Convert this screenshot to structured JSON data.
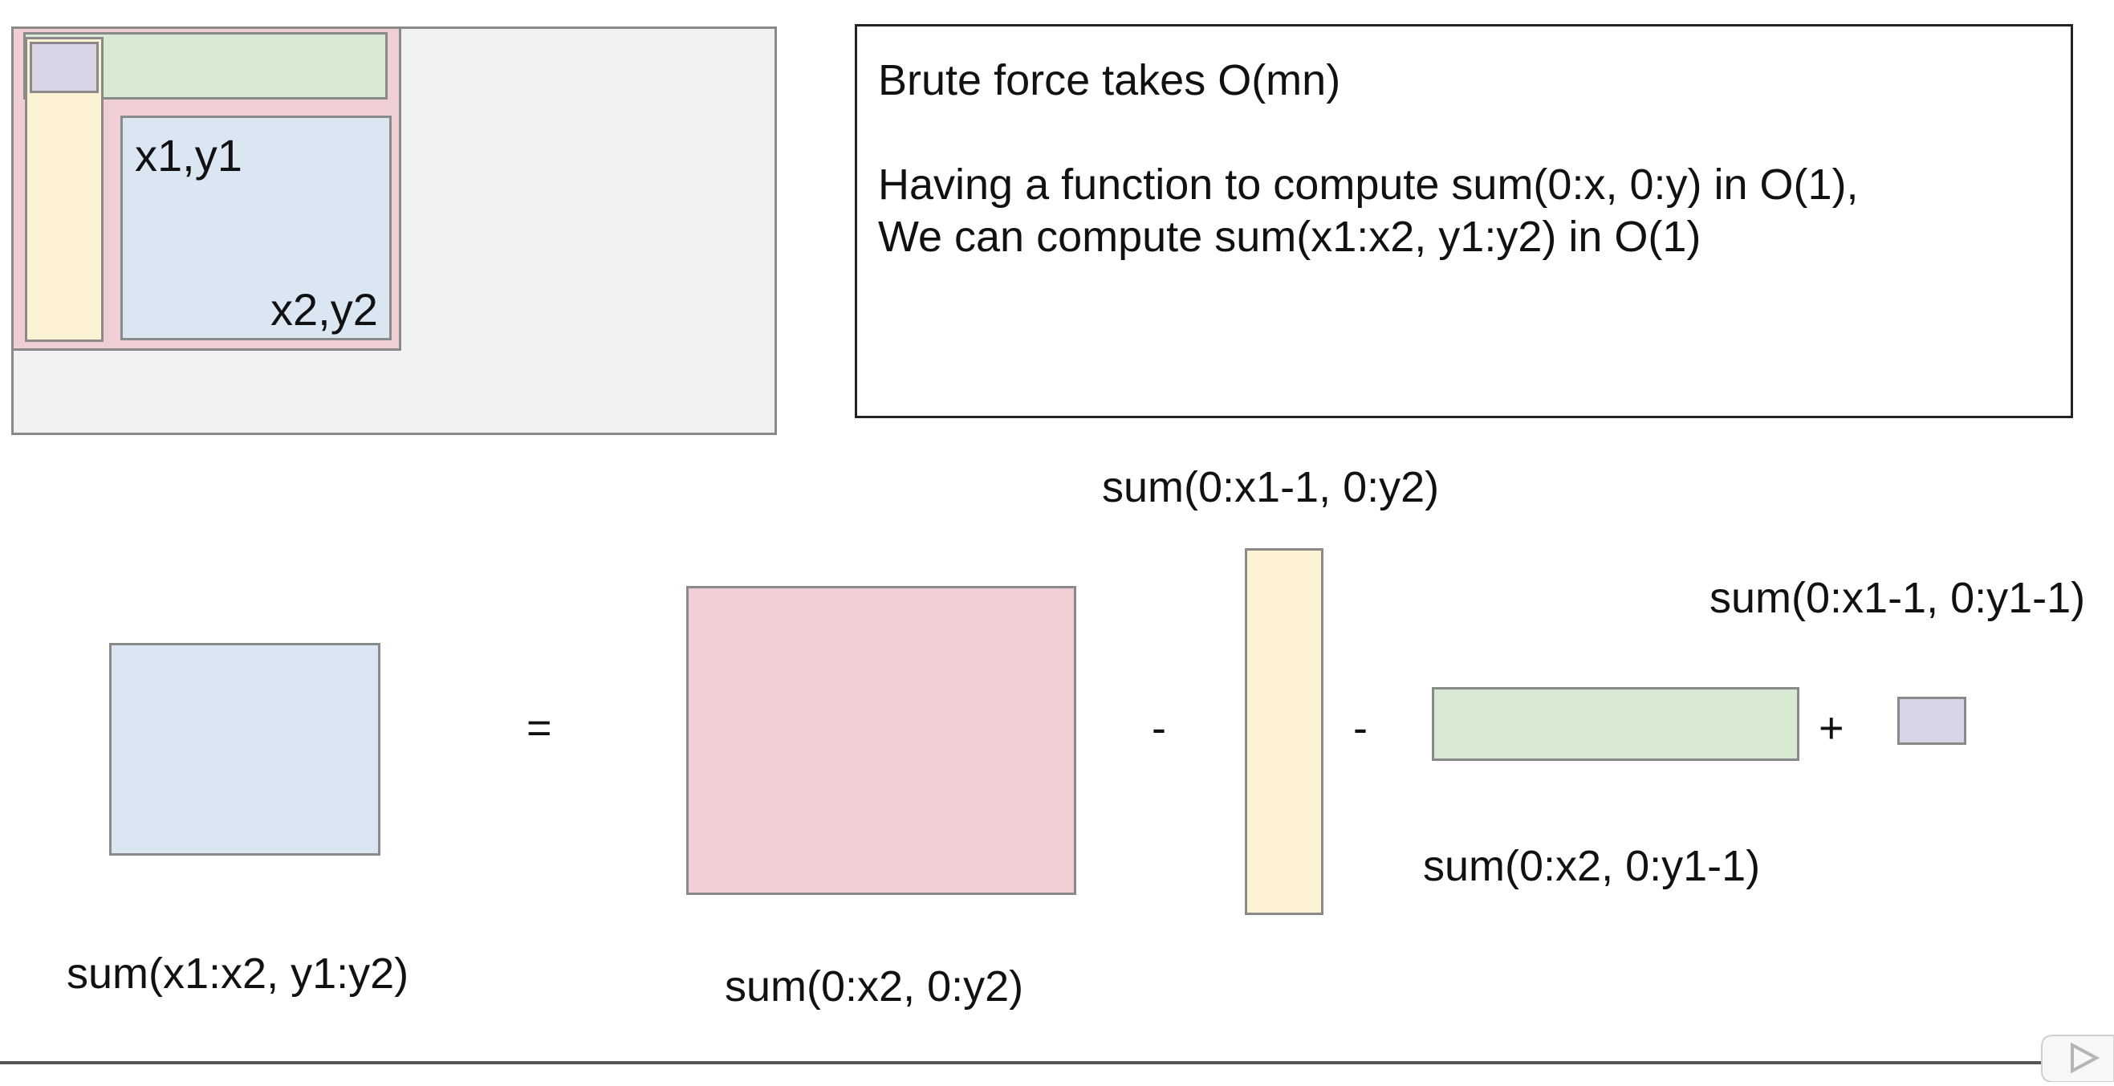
{
  "matrix": {
    "top_left_label": "x1,y1",
    "bottom_right_label": "x2,y2"
  },
  "note": {
    "line1": "Brute force takes O(mn)",
    "line2": "Having a function to compute sum(0:x, 0:y) in O(1),",
    "line3": "We can compute sum(x1:x2, y1:y2) in O(1)"
  },
  "equation": {
    "target_label": "sum(x1:x2, y1:y2)",
    "equals": "=",
    "whole_label": "sum(0:x2, 0:y2)",
    "minus1": "-",
    "left_strip_label": "sum(0:x1-1, 0:y2)",
    "minus2": "-",
    "top_strip_label": "sum(0:x2, 0:y1-1)",
    "plus": "+",
    "corner_label": "sum(0:x1-1, 0:y1-1)"
  },
  "colors": {
    "pink": "#efcfd3",
    "blue": "#dae7f3",
    "yellow": "#fdf2d2",
    "green": "#d9ead4",
    "purple": "#d9d3e8",
    "matrix_bg": "#f1f1f1"
  },
  "icons": {
    "player": "play-icon"
  }
}
